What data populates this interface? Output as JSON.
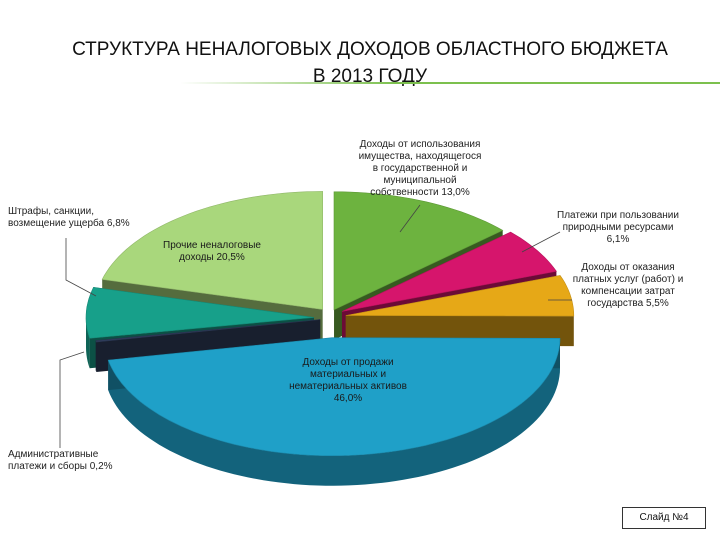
{
  "title_line1": "СТРУКТУРА НЕНАЛОГОВЫХ ДОХОДОВ ОБЛАСТНОГО БЮДЖЕТА",
  "title_line2": "В 2013 ГОДУ",
  "slide_label": "Слайд №4",
  "chart_data": {
    "type": "pie",
    "title": "СТРУКТУРА НЕНАЛОГОВЫХ ДОХОДОВ ОБЛАСТНОГО БЮДЖЕТА В 2013 ГОДУ",
    "slices": [
      {
        "name": "Доходы от использования имущества, находящегося в государственной и муниципальной собственности",
        "value": 13.0,
        "label": [
          "Доходы от использования",
          "имущества, находящегося",
          "в государственной  и",
          "муниципальной",
          "собственности 13,0%"
        ],
        "color": "#6db33f"
      },
      {
        "name": "Платежи при пользовании природными ресурсами",
        "value": 6.1,
        "label": [
          "Платежи при пользовании",
          "природными ресурсами",
          "6,1%"
        ],
        "color": "#d6156c"
      },
      {
        "name": "Доходы от оказания платных услуг (работ) и компенсации затрат государства",
        "value": 5.5,
        "label": [
          "Доходы от оказания",
          "платных услуг (работ) и",
          "компенсации затрат",
          "государства 5,5%"
        ],
        "color": "#e6a817"
      },
      {
        "name": "Доходы от продажи материальных и нематериальных активов",
        "value": 46.0,
        "label": [
          "Доходы от продажи",
          "материальных и",
          "нематериальных активов",
          "46,0%"
        ],
        "color": "#1fa0c8"
      },
      {
        "name": "Административные платежи и сборы",
        "value": 0.2,
        "label": [
          "Административные",
          "платежи и сборы 0,2%"
        ],
        "color": "#2f3d5c"
      },
      {
        "name": "Штрафы, санкции, возмещение ущерба",
        "value": 6.8,
        "label": [
          "Штрафы, санкции,",
          "возмещение ущерба 6,8%"
        ],
        "color": "#17a08a"
      },
      {
        "name": "Прочие неналоговые доходы",
        "value": 20.5,
        "label": [
          "Прочие неналоговые",
          "доходы 20,5%"
        ],
        "color": "#a9d77c"
      }
    ]
  }
}
